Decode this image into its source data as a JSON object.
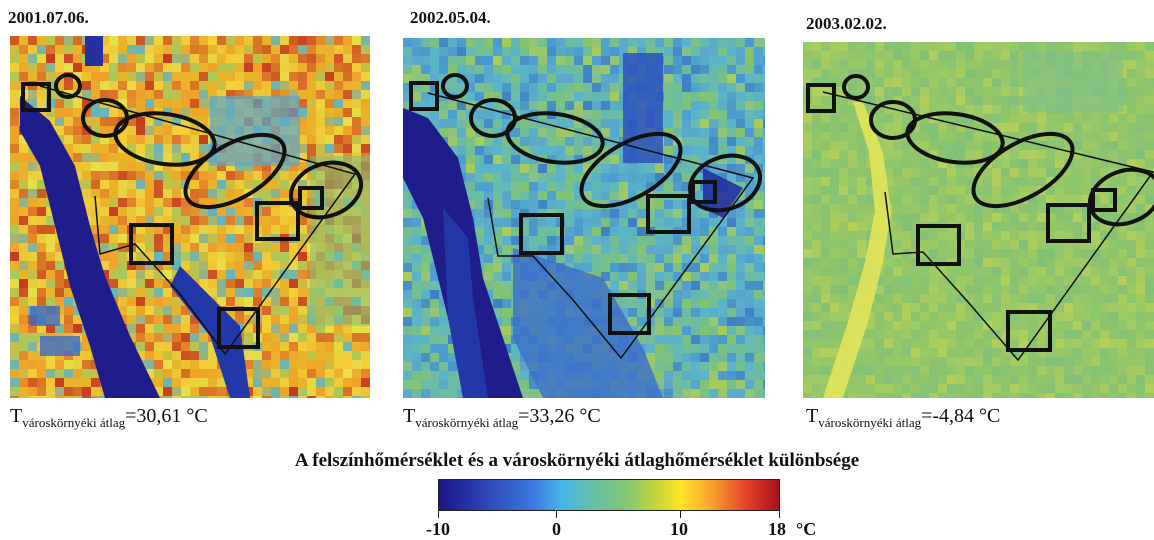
{
  "panels": [
    {
      "date": "2001.07.06.",
      "label_main": "T",
      "label_sub": "városkörnyéki átlag",
      "label_value": "=30,61 °C",
      "palette": [
        "#e9b32a",
        "#f3d23a",
        "#dd6e2a",
        "#c63a22",
        "#a7c95c",
        "#5fb5bf",
        "#f0a02a",
        "#e7e14a"
      ]
    },
    {
      "date": "2002.05.04.",
      "label_main": "T",
      "label_sub": "városkörnyéki átlag",
      "label_value": "=33,26 °C",
      "palette": [
        "#5ab3c6",
        "#6cbca3",
        "#4a98d2",
        "#86c46b",
        "#3f7fc6",
        "#7ec27e",
        "#a9cc55",
        "#5aa6cc"
      ]
    },
    {
      "date": "2003.02.02.",
      "label_main": "T",
      "label_sub": "városkörnyéki átlag",
      "label_value": "=-4,84 °C",
      "palette": [
        "#8ec66c",
        "#9ecb64",
        "#7fc07a",
        "#a8cd5e",
        "#86c274",
        "#b5d05a",
        "#8bc26e",
        "#97c768"
      ]
    }
  ],
  "legend": {
    "title": "A felszínhőmérséklet és a városkörnyéki  átlaghőmérséklet különbsége",
    "tick_labels": [
      "-10",
      "0",
      "10",
      "18"
    ],
    "unit": "°C",
    "range": [
      -10,
      18
    ],
    "tick_values": [
      -10,
      0,
      10,
      18
    ],
    "colors": [
      "#1b1587",
      "#3c7be0",
      "#46b5e8",
      "#86c86e",
      "#ffe426",
      "#e5452a",
      "#a8101b"
    ]
  }
}
